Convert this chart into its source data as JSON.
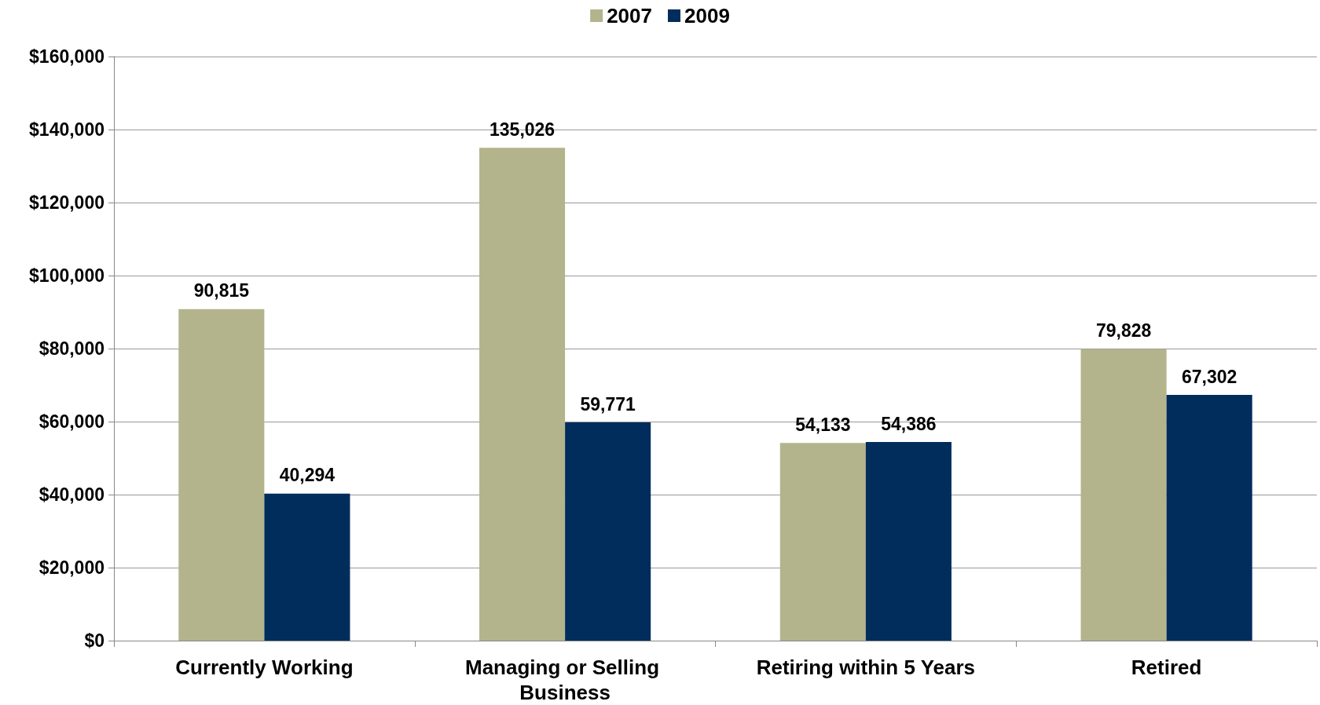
{
  "chart_data": {
    "type": "bar",
    "categories": [
      "Currently Working",
      "Managing or Selling Business",
      "Retiring within 5 Years",
      "Retired"
    ],
    "series": [
      {
        "name": "2007",
        "color": "#b3b48c",
        "values": [
          90815,
          135026,
          54133,
          79828
        ],
        "value_labels": [
          "90,815",
          "135,026",
          "54,133",
          "79,828"
        ]
      },
      {
        "name": "2009",
        "color": "#002d5c",
        "values": [
          40294,
          59771,
          54386,
          67302
        ],
        "value_labels": [
          "40,294",
          "59,771",
          "54,386",
          "67,302"
        ]
      }
    ],
    "ylim": [
      0,
      160000
    ],
    "yticks": [
      {
        "value": 0,
        "label": "$0"
      },
      {
        "value": 20000,
        "label": "$20,000"
      },
      {
        "value": 40000,
        "label": "$40,000"
      },
      {
        "value": 60000,
        "label": "$60,000"
      },
      {
        "value": 80000,
        "label": "$80,000"
      },
      {
        "value": 100000,
        "label": "$100,000"
      },
      {
        "value": 120000,
        "label": "$120,000"
      },
      {
        "value": 140000,
        "label": "$140,000"
      },
      {
        "value": 160000,
        "label": "$160,000"
      }
    ],
    "grid": "y",
    "legend": "top"
  }
}
